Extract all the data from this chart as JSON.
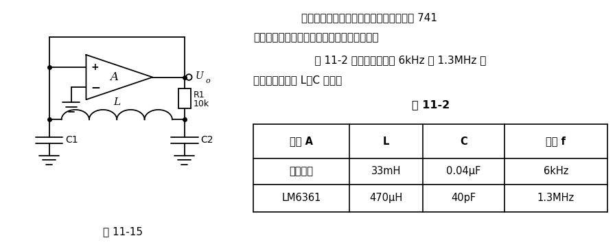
{
  "bg_color": "#ffffff",
  "fig_width": 8.96,
  "fig_height": 3.63,
  "dpi": 100,
  "text_paragraph1": "当工作频率较低时，可以用任何运放。如 741",
  "text_paragraph2": "之类，但工作频率较高时，应选用高速运放。",
  "text_paragraph3": "    表 11-2 中给出了频率为 6kHz 和 1.3MHz 时",
  "text_paragraph4": "对运放的选用和 L、C 之值。",
  "table_title": "表 11-2",
  "table_headers": [
    "运放 A",
    "L",
    "C",
    "频率 f"
  ],
  "table_row1": [
    "任何品种",
    "33mH",
    "0.04μF",
    "6kHz"
  ],
  "table_row2": [
    "LM6361",
    "470μH",
    "40pF",
    "1.3MHz"
  ],
  "fig_label": "图 11-15",
  "circuit_label_Uo": "U",
  "circuit_label_Uo_sub": "o",
  "circuit_label_R1": "R1",
  "circuit_label_R1_val": "10k",
  "circuit_label_L": "L",
  "circuit_label_C1": "C1",
  "circuit_label_C2": "C2",
  "circuit_label_A": "A"
}
